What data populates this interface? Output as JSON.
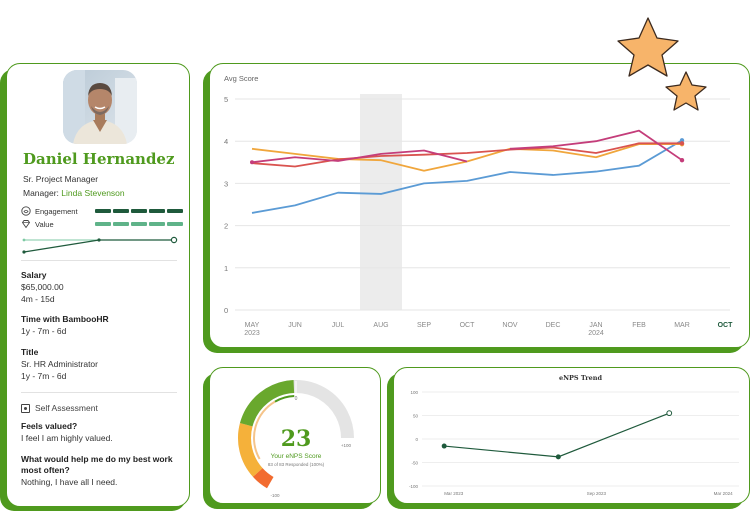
{
  "profile": {
    "name": "Daniel Hernandez",
    "job_title": "Sr. Project Manager",
    "manager_label": "Manager:",
    "manager_name": "Linda Stevenson",
    "metrics": [
      {
        "label": "Engagement",
        "icon": "engagement-icon",
        "bar_color": "#1f5a3c",
        "filled": 5,
        "total": 5
      },
      {
        "label": "Value",
        "icon": "diamond-icon",
        "bar_color": "#5fb389",
        "filled": 5,
        "total": 5
      }
    ],
    "fields": [
      {
        "label": "Salary",
        "values": [
          "$65,000.00",
          "4m - 15d"
        ]
      },
      {
        "label": "Time with BambooHR",
        "values": [
          "1y - 7m - 6d"
        ]
      },
      {
        "label": "Title",
        "values": [
          "Sr. HR Administrator",
          "1y - 7m - 6d"
        ]
      }
    ],
    "self_assessment": {
      "heading": "Self Assessment",
      "qa": [
        {
          "question": "Feels valued?",
          "answer": "I feel I am highly valued."
        },
        {
          "question": "What would help me do my best work most often?",
          "answer": "Nothing, I have all I need."
        }
      ]
    }
  },
  "colors": {
    "brand_green": "#4f9a1e",
    "blue": "#5b9bd5",
    "orange": "#f0a63c",
    "magenta": "#c43d7a",
    "red": "#d9534f",
    "dark_green": "#1f5a3c"
  },
  "chart_data": [
    {
      "type": "line",
      "title": "",
      "ylabel": "Avg Score",
      "ylim": [
        0,
        5
      ],
      "yticks": [
        "0",
        "1",
        "2",
        "3",
        "4",
        "5"
      ],
      "grid": "horizontal",
      "categories": [
        "MAY",
        "JUN",
        "JUL",
        "AUG",
        "SEP",
        "OCT",
        "NOV",
        "DEC",
        "JAN",
        "FEB",
        "MAR"
      ],
      "category_sublabels": [
        "2023",
        "",
        "",
        "",
        "",
        "",
        "",
        "",
        "2024",
        "",
        ""
      ],
      "extra_tick": "OCT",
      "highlight_category": "AUG",
      "series": [
        {
          "values": [
            2.3,
            2.48,
            2.78,
            2.75,
            3.0,
            3.06,
            3.27,
            3.2,
            3.28,
            3.42,
            4.02
          ],
          "color": "#5b9bd5",
          "end_marker": true
        },
        {
          "values": [
            3.82,
            3.7,
            3.58,
            3.55,
            3.3,
            3.52,
            3.82,
            3.78,
            3.62,
            3.93,
            3.93
          ],
          "color": "#f0a63c",
          "end_marker": true
        },
        {
          "values": [
            3.48,
            3.4,
            3.57,
            3.65,
            3.68,
            3.72,
            3.8,
            3.85,
            3.72,
            3.95,
            3.95
          ],
          "color": "#d9534f",
          "end_marker": true
        },
        {
          "values": [
            3.5,
            3.62,
            3.53,
            3.7,
            3.78,
            3.52,
            null,
            null,
            null,
            null,
            null
          ],
          "color": "#c43d7a",
          "end_marker": false,
          "start_marker": true
        },
        {
          "values": [
            null,
            null,
            null,
            null,
            null,
            null,
            3.82,
            3.88,
            4.0,
            4.25,
            3.55
          ],
          "color": "#c43d7a",
          "end_marker": true
        }
      ]
    },
    {
      "type": "gauge",
      "value": "23",
      "label": "Your eNPS Score",
      "sublabel": "83 of 83 Responded (100%)",
      "min_label": "-100",
      "max_label": "+100",
      "mid_label": "0",
      "range": [
        -100,
        100
      ],
      "score": 23
    },
    {
      "type": "line",
      "title": "eNPS Trend",
      "ylim": [
        -100,
        100
      ],
      "yticks": [
        "100",
        "50",
        "0",
        "-50",
        "-100"
      ],
      "categories": [
        "Mar 2023",
        "Sep 2023",
        "Mar 2024"
      ],
      "series": [
        {
          "x": [
            0.07,
            0.43,
            0.78
          ],
          "values": [
            -15,
            -38,
            55
          ],
          "color": "#1f5a3c"
        }
      ]
    }
  ]
}
